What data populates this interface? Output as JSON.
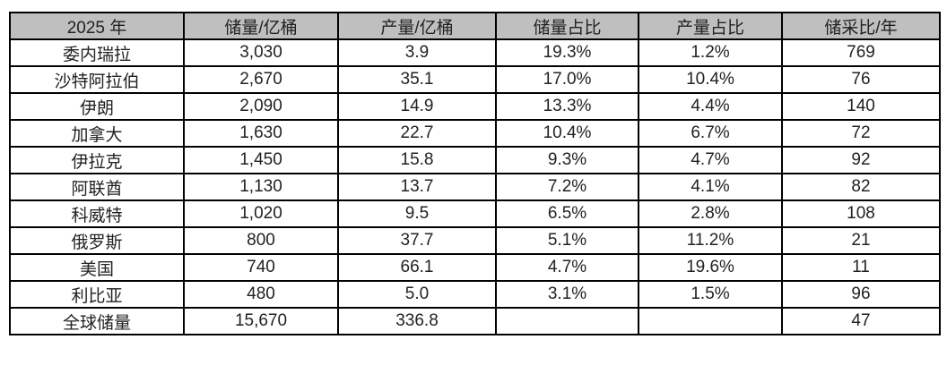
{
  "colors": {
    "header_background": "#bfbfbf",
    "border": "#000000",
    "text": "#222222",
    "page_background": "#ffffff"
  },
  "table": {
    "headers": [
      "2025 年",
      "储量/亿桶",
      "产量/亿桶",
      "储量占比",
      "产量占比",
      "储采比/年"
    ],
    "rows": [
      [
        "委内瑞拉",
        "3,030",
        "3.9",
        "19.3%",
        "1.2%",
        "769"
      ],
      [
        "沙特阿拉伯",
        "2,670",
        "35.1",
        "17.0%",
        "10.4%",
        "76"
      ],
      [
        "伊朗",
        "2,090",
        "14.9",
        "13.3%",
        "4.4%",
        "140"
      ],
      [
        "加拿大",
        "1,630",
        "22.7",
        "10.4%",
        "6.7%",
        "72"
      ],
      [
        "伊拉克",
        "1,450",
        "15.8",
        "9.3%",
        "4.7%",
        "92"
      ],
      [
        "阿联酋",
        "1,130",
        "13.7",
        "7.2%",
        "4.1%",
        "82"
      ],
      [
        "科威特",
        "1,020",
        "9.5",
        "6.5%",
        "2.8%",
        "108"
      ],
      [
        "俄罗斯",
        "800",
        "37.7",
        "5.1%",
        "11.2%",
        "21"
      ],
      [
        "美国",
        "740",
        "66.1",
        "4.7%",
        "19.6%",
        "11"
      ],
      [
        "利比亚",
        "480",
        "5.0",
        "3.1%",
        "1.5%",
        "96"
      ],
      [
        "全球储量",
        "15,670",
        "336.8",
        "",
        "",
        "47"
      ]
    ]
  },
  "chart_data": {
    "type": "table",
    "title": "2025 年",
    "columns": [
      "2025 年",
      "储量/亿桶",
      "产量/亿桶",
      "储量占比",
      "产量占比",
      "储采比/年"
    ],
    "rows": [
      {
        "entity": "委内瑞拉",
        "reserves_100m_bbl": 3030,
        "production_100m_bbl": 3.9,
        "reserve_share_pct": 19.3,
        "production_share_pct": 1.2,
        "reserve_production_ratio_years": 769
      },
      {
        "entity": "沙特阿拉伯",
        "reserves_100m_bbl": 2670,
        "production_100m_bbl": 35.1,
        "reserve_share_pct": 17.0,
        "production_share_pct": 10.4,
        "reserve_production_ratio_years": 76
      },
      {
        "entity": "伊朗",
        "reserves_100m_bbl": 2090,
        "production_100m_bbl": 14.9,
        "reserve_share_pct": 13.3,
        "production_share_pct": 4.4,
        "reserve_production_ratio_years": 140
      },
      {
        "entity": "加拿大",
        "reserves_100m_bbl": 1630,
        "production_100m_bbl": 22.7,
        "reserve_share_pct": 10.4,
        "production_share_pct": 6.7,
        "reserve_production_ratio_years": 72
      },
      {
        "entity": "伊拉克",
        "reserves_100m_bbl": 1450,
        "production_100m_bbl": 15.8,
        "reserve_share_pct": 9.3,
        "production_share_pct": 4.7,
        "reserve_production_ratio_years": 92
      },
      {
        "entity": "阿联酋",
        "reserves_100m_bbl": 1130,
        "production_100m_bbl": 13.7,
        "reserve_share_pct": 7.2,
        "production_share_pct": 4.1,
        "reserve_production_ratio_years": 82
      },
      {
        "entity": "科威特",
        "reserves_100m_bbl": 1020,
        "production_100m_bbl": 9.5,
        "reserve_share_pct": 6.5,
        "production_share_pct": 2.8,
        "reserve_production_ratio_years": 108
      },
      {
        "entity": "俄罗斯",
        "reserves_100m_bbl": 800,
        "production_100m_bbl": 37.7,
        "reserve_share_pct": 5.1,
        "production_share_pct": 11.2,
        "reserve_production_ratio_years": 21
      },
      {
        "entity": "美国",
        "reserves_100m_bbl": 740,
        "production_100m_bbl": 66.1,
        "reserve_share_pct": 4.7,
        "production_share_pct": 19.6,
        "reserve_production_ratio_years": 11
      },
      {
        "entity": "利比亚",
        "reserves_100m_bbl": 480,
        "production_100m_bbl": 5.0,
        "reserve_share_pct": 3.1,
        "production_share_pct": 1.5,
        "reserve_production_ratio_years": 96
      },
      {
        "entity": "全球储量",
        "reserves_100m_bbl": 15670,
        "production_100m_bbl": 336.8,
        "reserve_share_pct": null,
        "production_share_pct": null,
        "reserve_production_ratio_years": 47
      }
    ],
    "layout": {
      "header_fill": "#bfbfbf",
      "grid": true,
      "cell_alignment": "center"
    }
  }
}
